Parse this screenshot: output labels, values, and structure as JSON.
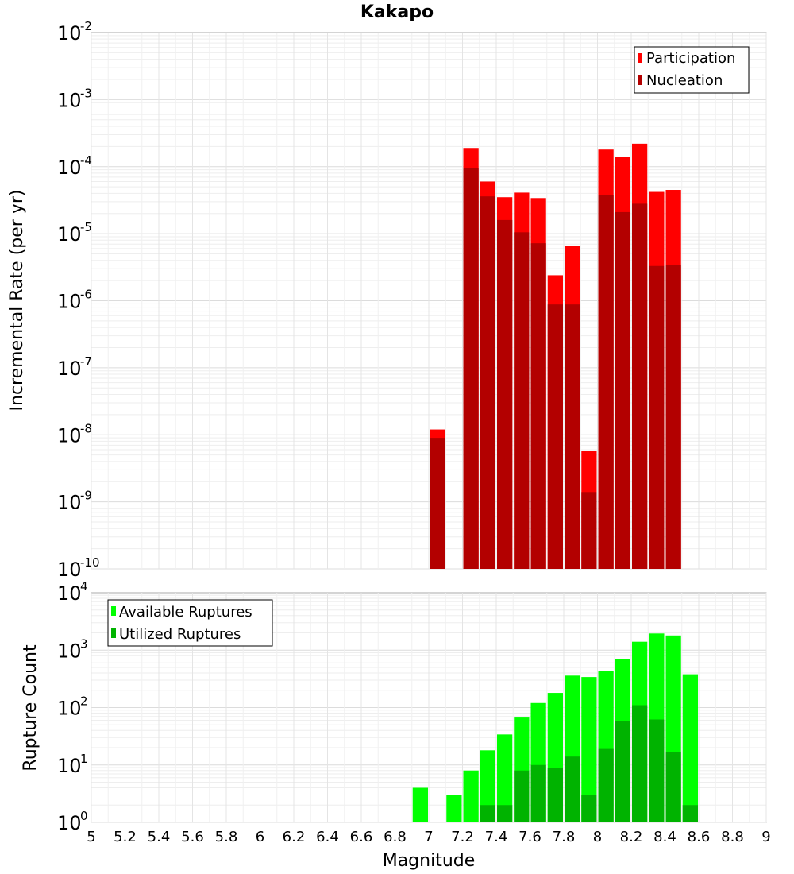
{
  "chart_data": [
    {
      "type": "bar",
      "title": "Kakapo",
      "xlabel": "",
      "ylabel": "Incremental Rate (per yr)",
      "yscale": "log",
      "ylim_exponents": [
        -10,
        -2
      ],
      "xlim": [
        5,
        9
      ],
      "bin_width": 0.1,
      "legend": {
        "placement": "top-right",
        "entries": [
          "Participation",
          "Nucleation"
        ]
      },
      "series": [
        {
          "name": "Participation",
          "color": "#ff0000",
          "x": [
            7.05,
            7.25,
            7.35,
            7.45,
            7.55,
            7.65,
            7.75,
            7.85,
            7.95,
            8.05,
            8.15,
            8.25,
            8.35,
            8.45
          ],
          "values": [
            1.2e-08,
            0.00019,
            6e-05,
            3.5e-05,
            4.1e-05,
            3.4e-05,
            2.4e-06,
            6.5e-06,
            5.8e-09,
            0.00018,
            0.00014,
            0.00022,
            4.2e-05,
            4.5e-05
          ]
        },
        {
          "name": "Nucleation",
          "color": "#b30000",
          "x": [
            7.05,
            7.25,
            7.35,
            7.45,
            7.55,
            7.65,
            7.75,
            7.85,
            7.95,
            8.05,
            8.15,
            8.25,
            8.35,
            8.45
          ],
          "values": [
            9e-09,
            9.5e-05,
            3.6e-05,
            1.6e-05,
            1.05e-05,
            7.2e-06,
            8.8e-07,
            8.8e-07,
            1.4e-09,
            3.8e-05,
            2.1e-05,
            2.8e-05,
            3.3e-06,
            3.4e-06
          ]
        }
      ]
    },
    {
      "type": "bar",
      "title": "",
      "xlabel": "Magnitude",
      "ylabel": "Rupture Count",
      "yscale": "log",
      "ylim_exponents": [
        0,
        4
      ],
      "xlim": [
        5,
        9
      ],
      "bin_width": 0.1,
      "legend": {
        "placement": "top-left",
        "entries": [
          "Available Ruptures",
          "Utilized Ruptures"
        ]
      },
      "series": [
        {
          "name": "Available Ruptures",
          "color": "#00ff00",
          "x": [
            6.95,
            7.15,
            7.25,
            7.35,
            7.45,
            7.55,
            7.65,
            7.75,
            7.85,
            7.95,
            8.05,
            8.15,
            8.25,
            8.35,
            8.45,
            8.55
          ],
          "values": [
            4,
            3,
            8,
            18,
            34,
            67,
            120,
            180,
            360,
            340,
            430,
            710,
            1400,
            1950,
            1800,
            380
          ]
        },
        {
          "name": "Utilized Ruptures",
          "color": "#00b300",
          "x": [
            7.05,
            7.25,
            7.35,
            7.45,
            7.55,
            7.65,
            7.75,
            7.85,
            7.95,
            8.05,
            8.15,
            8.25,
            8.35,
            8.45,
            8.55
          ],
          "values": [
            1,
            1,
            2,
            2,
            8,
            10,
            9,
            14,
            3,
            19,
            58,
            110,
            62,
            17,
            2
          ]
        }
      ]
    }
  ],
  "axes": {
    "top": {
      "tick_exponents": [
        "-2",
        "-3",
        "-4",
        "-5",
        "-6",
        "-7",
        "-8",
        "-9",
        "-10"
      ],
      "tick_base": "10"
    },
    "bottom": {
      "tick_exponents": [
        "4",
        "3",
        "2",
        "1",
        "0"
      ],
      "tick_base": "10"
    },
    "x_ticks": [
      "5",
      "5.2",
      "5.4",
      "5.6",
      "5.8",
      "6",
      "6.2",
      "6.4",
      "6.6",
      "6.8",
      "7",
      "7.2",
      "7.4",
      "7.6",
      "7.8",
      "8",
      "8.2",
      "8.4",
      "8.6",
      "8.8",
      "9"
    ]
  }
}
